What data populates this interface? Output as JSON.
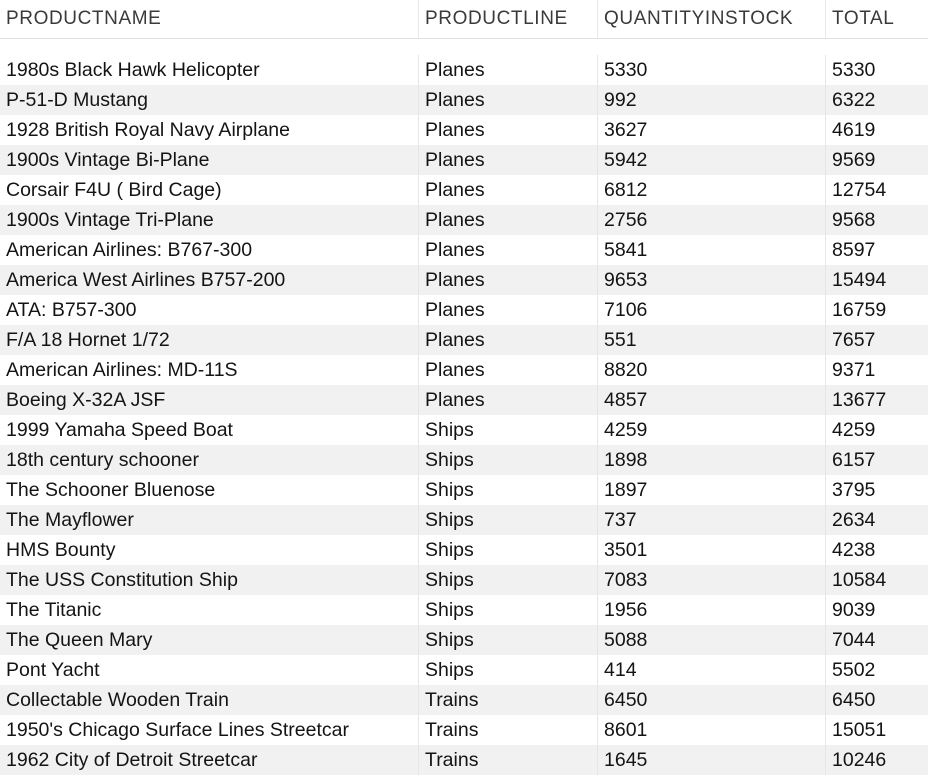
{
  "table": {
    "columns": [
      "PRODUCTNAME",
      "PRODUCTLINE",
      "QUANTITYINSTOCK",
      "TOTAL"
    ],
    "rows": [
      [
        "1980s Black Hawk Helicopter",
        "Planes",
        "5330",
        "5330"
      ],
      [
        "P-51-D Mustang",
        "Planes",
        "992",
        "6322"
      ],
      [
        "1928 British Royal Navy Airplane",
        "Planes",
        "3627",
        "4619"
      ],
      [
        "1900s Vintage Bi-Plane",
        "Planes",
        "5942",
        "9569"
      ],
      [
        "Corsair F4U ( Bird Cage)",
        "Planes",
        "6812",
        "12754"
      ],
      [
        "1900s Vintage Tri-Plane",
        "Planes",
        "2756",
        "9568"
      ],
      [
        "American Airlines: B767-300",
        "Planes",
        "5841",
        "8597"
      ],
      [
        "America West Airlines B757-200",
        "Planes",
        "9653",
        "15494"
      ],
      [
        "ATA: B757-300",
        "Planes",
        "7106",
        "16759"
      ],
      [
        "F/A 18 Hornet 1/72",
        "Planes",
        "551",
        "7657"
      ],
      [
        "American Airlines: MD-11S",
        "Planes",
        "8820",
        "9371"
      ],
      [
        "Boeing X-32A JSF",
        "Planes",
        "4857",
        "13677"
      ],
      [
        "1999 Yamaha Speed Boat",
        "Ships",
        "4259",
        "4259"
      ],
      [
        "18th century schooner",
        "Ships",
        "1898",
        "6157"
      ],
      [
        "The Schooner Bluenose",
        "Ships",
        "1897",
        "3795"
      ],
      [
        "The Mayflower",
        "Ships",
        "737",
        "2634"
      ],
      [
        "HMS Bounty",
        "Ships",
        "3501",
        "4238"
      ],
      [
        "The USS Constitution Ship",
        "Ships",
        "7083",
        "10584"
      ],
      [
        "The Titanic",
        "Ships",
        "1956",
        "9039"
      ],
      [
        "The Queen Mary",
        "Ships",
        "5088",
        "7044"
      ],
      [
        "Pont Yacht",
        "Ships",
        "414",
        "5502"
      ],
      [
        "Collectable Wooden Train",
        "Trains",
        "6450",
        "6450"
      ],
      [
        "1950's Chicago Surface Lines Streetcar",
        "Trains",
        "8601",
        "15051"
      ],
      [
        "1962 City of Detroit Streetcar",
        "Trains",
        "1645",
        "10246"
      ]
    ]
  }
}
